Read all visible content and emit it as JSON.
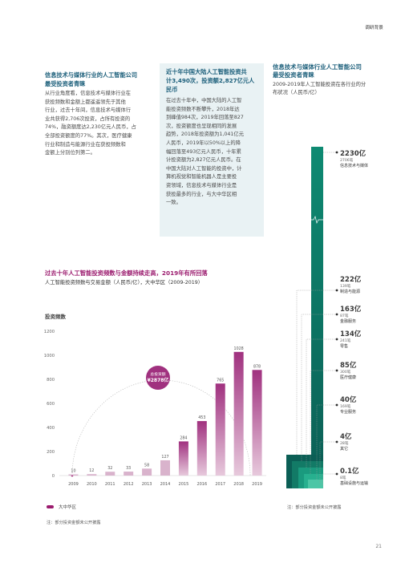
{
  "header": {
    "section_tag": "调研背景"
  },
  "left_block": {
    "title_line1": "信息技术与媒体行业的人工智能公司",
    "title_line2": "最受投资者青睐",
    "body_lines": [
      "从行业角度看，信息技术与媒体行业在",
      "获投频数和金额上都遥遥领先于其他",
      "行业，过去十年间，信息技术与媒体行",
      "业共获得2,706次投资，占所有投资的",
      "74%，融资额度达2,230亿元人民币，占",
      "全部投资额度的77%。其次，医疗健康",
      "行业和制造与能源行业在获投频数和",
      "金额上分别位列第二。"
    ]
  },
  "callout": {
    "title_line1": "近十年中国大陆人工智能投资共",
    "title_line2": "计3,490次，投资额2,827亿元人",
    "title_line3": "民币",
    "body_lines": [
      "在过去十年中，中国大陆的人工智",
      "能投资频数不断攀升，2018年达",
      "到峰值984次，2019年回落至827",
      "次，投资额度也呈现相同的发展",
      "趋势，2018年投资额为1,041亿元",
      "人民币，2019年以50%以上的降",
      "幅回落至493亿元人民币，十年累",
      "计投资额为2,827亿元人民币。在",
      "中国大陆对人工智能的投资中，计",
      "算机视觉和智能机器人是主要投",
      "资领域，信息技术与媒体行业是",
      "获投最多的行业，与大中华区相",
      "一致。"
    ]
  },
  "chart_section": {
    "title": "过去十年人工智能投资频数与金额持续走高，2019年有所回落",
    "subtitle": "人工智能投资频数与交易金额（人民币/亿），大中华区（2009-2019）",
    "legend_label": "大中华区",
    "note": "注：部分投资金额未公开披露"
  },
  "right_section": {
    "title_line1": "信息技术与媒体行业人工智能公司",
    "title_line2": "最受投资者青睐",
    "subtitle_line1": "2009-2019年人工智能投资在各行业的分",
    "subtitle_line2": "布状况（人民币/亿）",
    "note": "注：部分投资金额未公开披露"
  },
  "industries": [
    {
      "value": "2230亿",
      "count": "2706笔",
      "name": "信息技术与媒体"
    },
    {
      "value": "222亿",
      "count": "139笔",
      "name": "制造与能源"
    },
    {
      "value": "163亿",
      "count": "87笔",
      "name": "金融服务"
    },
    {
      "value": "134亿",
      "count": "241笔",
      "name": "零售"
    },
    {
      "value": "85亿",
      "count": "300笔",
      "name": "医疗健康"
    },
    {
      "value": "40亿",
      "count": "169笔",
      "name": "专业服务"
    },
    {
      "value": "4亿",
      "count": "28笔",
      "name": "其它"
    },
    {
      "value": "0.1亿",
      "count": "8笔",
      "name": "基础设施与运输"
    }
  ],
  "chart_data": {
    "type": "bar",
    "ylabel": "投资频数",
    "categories": [
      "2009",
      "2010",
      "2011",
      "2012",
      "2013",
      "2014",
      "2015",
      "2016",
      "2017",
      "2018",
      "2019"
    ],
    "series": [
      {
        "name": "大中华区",
        "values": [
          10,
          12,
          32,
          33,
          58,
          127,
          284,
          453,
          765,
          1028,
          878
        ]
      }
    ],
    "ylim": [
      0,
      1200
    ],
    "yticks": [
      0,
      200,
      400,
      600,
      800,
      1000,
      1200
    ],
    "annotation": {
      "label": "总投资额",
      "value": "¥2878亿"
    },
    "colors": {
      "bar": "#a0317f",
      "bar_light": "#d9b3cc",
      "legend": "#9b1b6e"
    }
  },
  "page": {
    "number": "21"
  }
}
